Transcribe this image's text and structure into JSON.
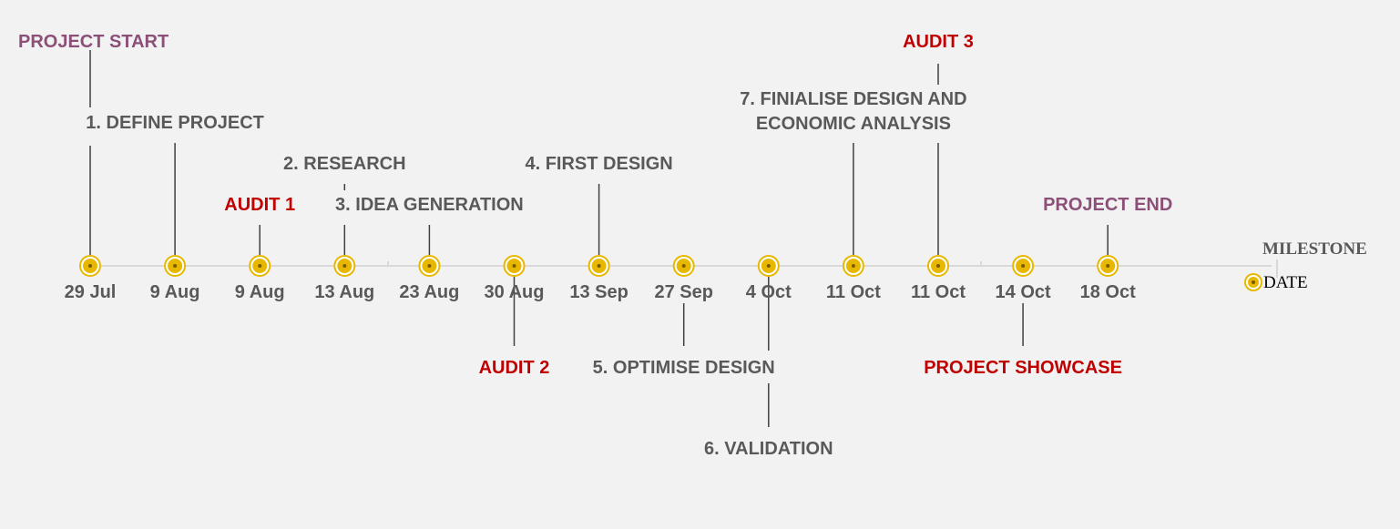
{
  "chart_data": {
    "type": "timeline",
    "title": "",
    "events": [
      {
        "date": "29 Jul",
        "milestone": "PROJECT START",
        "kind": "project",
        "side": "above"
      },
      {
        "date": "9 Aug",
        "milestone": "1. DEFINE PROJECT",
        "kind": "phase",
        "side": "above"
      },
      {
        "date": "9 Aug",
        "milestone": "AUDIT 1",
        "kind": "audit",
        "side": "above"
      },
      {
        "date": "13 Aug",
        "milestone": "2. RESEARCH",
        "kind": "phase",
        "side": "above"
      },
      {
        "date": "23 Aug",
        "milestone": "3. IDEA GENERATION",
        "kind": "phase",
        "side": "above"
      },
      {
        "date": "30 Aug",
        "milestone": "AUDIT 2",
        "kind": "audit",
        "side": "below"
      },
      {
        "date": "13 Sep",
        "milestone": "4. FIRST DESIGN",
        "kind": "phase",
        "side": "above"
      },
      {
        "date": "27 Sep",
        "milestone": "5. OPTIMISE DESIGN",
        "kind": "phase",
        "side": "below"
      },
      {
        "date": "4 Oct",
        "milestone": "6. VALIDATION",
        "kind": "phase",
        "side": "below"
      },
      {
        "date": "11 Oct",
        "milestone": "7. FINIALISE DESIGN AND ECONOMIC ANALYSIS",
        "milestone_lines": [
          "7. FINIALISE DESIGN AND",
          "ECONOMIC ANALYSIS"
        ],
        "kind": "phase",
        "side": "above"
      },
      {
        "date": "11 Oct",
        "milestone": "AUDIT 3",
        "kind": "audit",
        "side": "above"
      },
      {
        "date": "14 Oct",
        "milestone": "PROJECT SHOWCASE",
        "kind": "audit",
        "side": "below"
      },
      {
        "date": "18 Oct",
        "milestone": "PROJECT END",
        "kind": "project",
        "side": "above"
      }
    ],
    "legend": {
      "series_label": "MILESTONE",
      "marker_label": "DATE"
    }
  },
  "colors": {
    "phase": "#595959",
    "audit": "#c00000",
    "project": "#8b4f78",
    "axis": "#d9d9d9",
    "connector": "#404040",
    "marker_fill": "#e8b800",
    "marker_ring": "#e8b800",
    "marker_center": "#7a5c00",
    "background": "#f2f2f2"
  }
}
